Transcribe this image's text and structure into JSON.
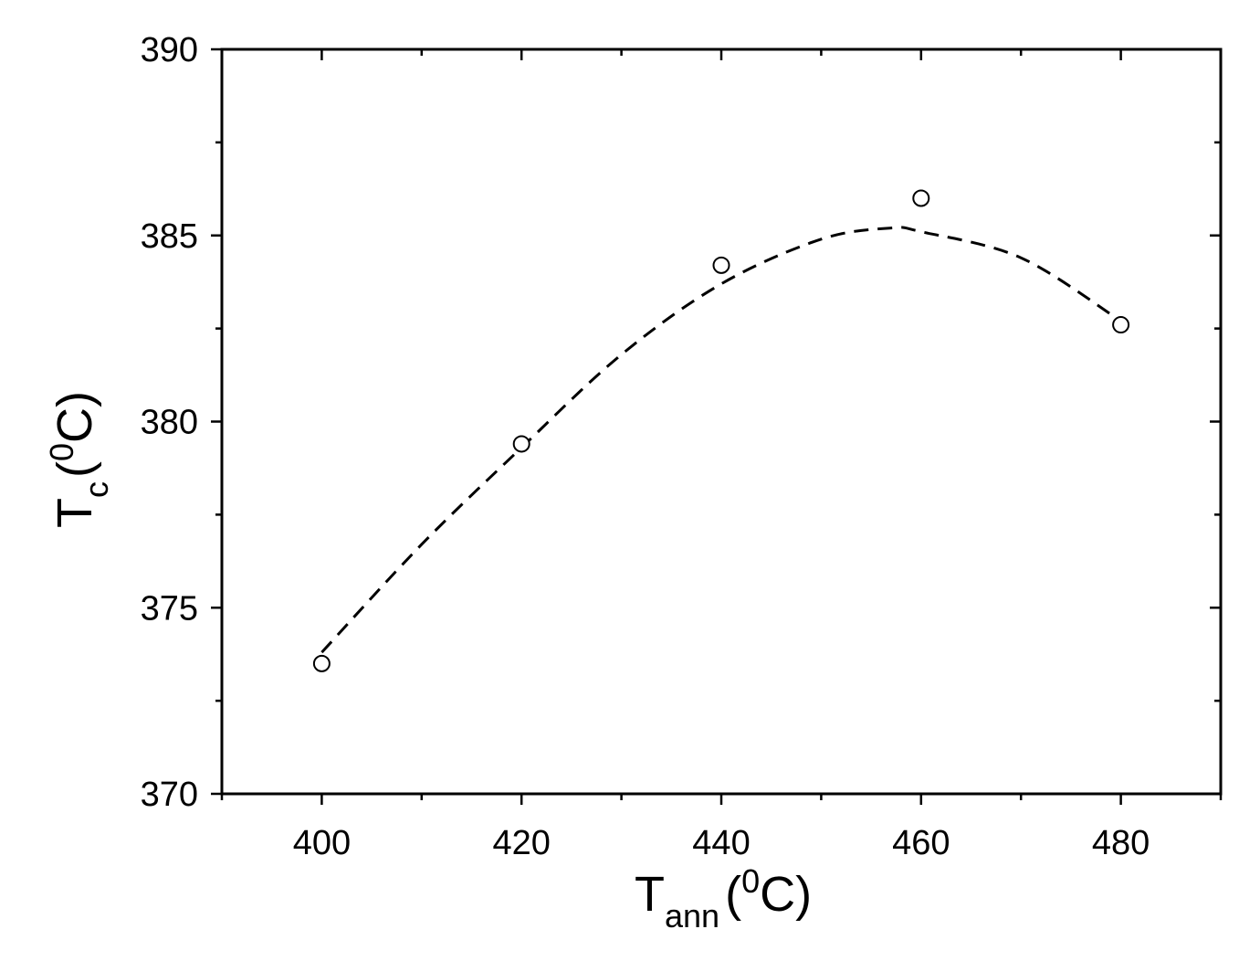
{
  "chart_data": {
    "type": "scatter",
    "x_axis": {
      "label_main": "T",
      "label_sub": "ann",
      "label_paren_open": "(",
      "label_sup": "0",
      "label_unit": "C)",
      "range": [
        390,
        490
      ],
      "major_ticks": [
        400,
        420,
        440,
        460,
        480
      ],
      "minor_ticks": [
        390,
        410,
        430,
        450,
        470,
        490
      ]
    },
    "y_axis": {
      "label_main": "T",
      "label_sub": "c",
      "label_paren_open": "(",
      "label_sup": "0",
      "label_unit": "C)",
      "range": [
        370,
        390
      ],
      "major_ticks": [
        370,
        375,
        380,
        385,
        390
      ],
      "minor_ticks": [
        372.5,
        377.5,
        382.5,
        387.5
      ]
    },
    "series": [
      {
        "kind": "points",
        "marker": "open-circle",
        "x": [
          400,
          420,
          440,
          460,
          480
        ],
        "y": [
          373.5,
          379.4,
          384.2,
          386.0,
          382.6
        ]
      },
      {
        "kind": "fit-curve",
        "style": "dashed",
        "x": [
          400,
          410,
          420,
          430,
          440,
          450,
          457,
          460,
          470,
          480
        ],
        "y": [
          373.8,
          376.7,
          379.3,
          381.8,
          383.7,
          384.9,
          385.2,
          385.1,
          384.4,
          382.7
        ]
      }
    ],
    "grid": false,
    "legend": "none",
    "colors": {
      "axis": "#000000",
      "marker": "#000000",
      "curve": "#000000",
      "background": "#ffffff"
    }
  }
}
